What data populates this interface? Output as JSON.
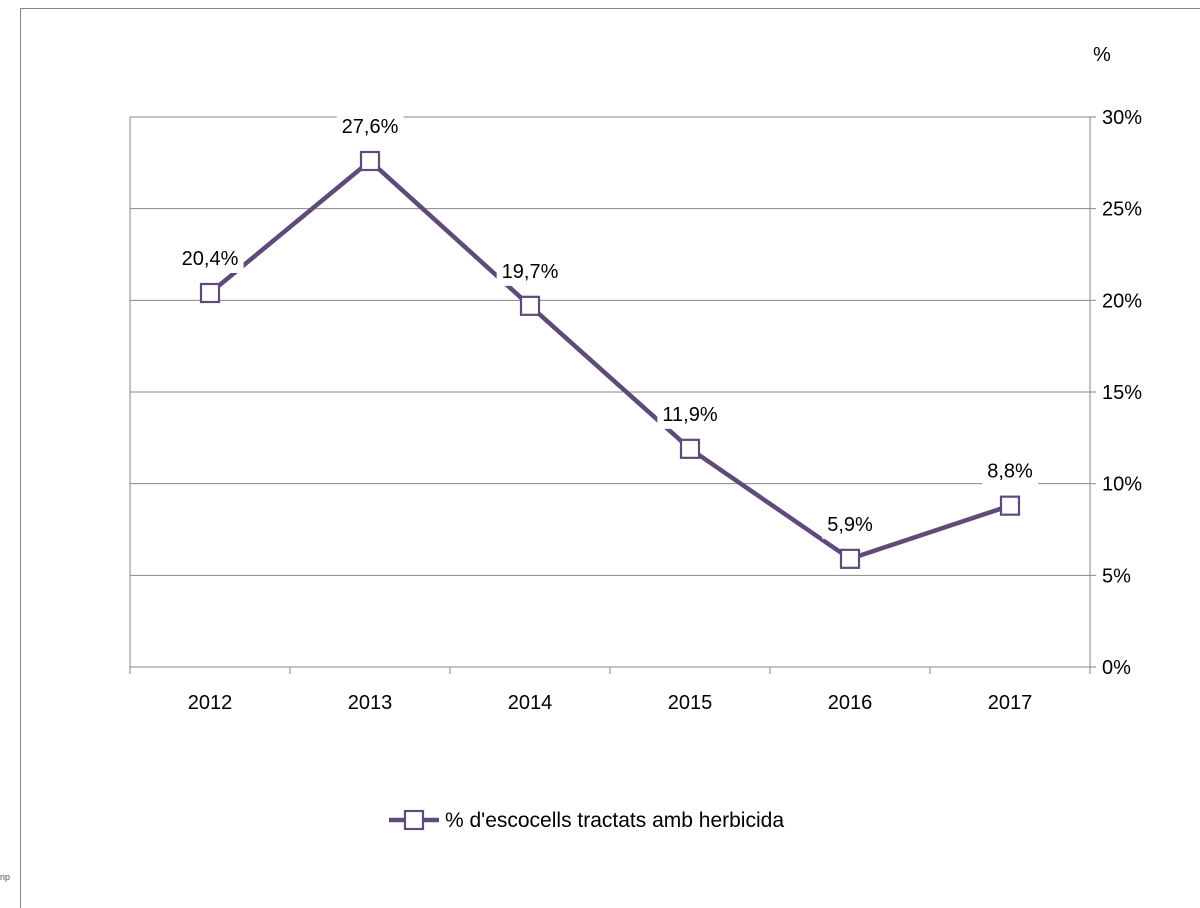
{
  "chart_data": {
    "type": "line",
    "categories": [
      "2012",
      "2013",
      "2014",
      "2015",
      "2016",
      "2017"
    ],
    "series": [
      {
        "name": "% d'escocells tractats amb herbicida",
        "values": [
          20.4,
          27.6,
          19.7,
          11.9,
          5.9,
          8.8
        ],
        "labels": [
          "20,4%",
          "27,6%",
          "19,7%",
          "11,9%",
          "5,9%",
          "8,8%"
        ],
        "color": "#5f4a7a",
        "marker": "open-square"
      }
    ],
    "y_axis": {
      "side": "right",
      "unit_label": "%",
      "min": 0,
      "max": 30,
      "step": 5,
      "tick_labels": [
        "0%",
        "5%",
        "10%",
        "15%",
        "20%",
        "25%",
        "30%"
      ]
    },
    "grid": true,
    "legend": "bottom",
    "title": "",
    "xlabel": "",
    "ylabel": "%"
  },
  "corner_fragment": "np"
}
